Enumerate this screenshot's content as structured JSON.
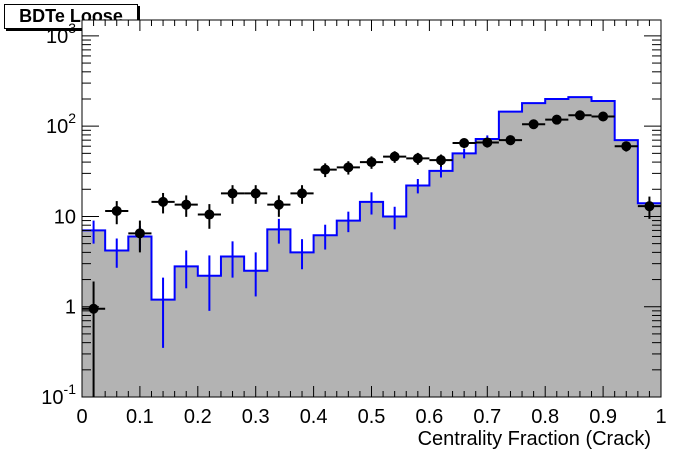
{
  "chart_data": {
    "type": "histogram",
    "title": "BDTe Loose",
    "xlabel": "Centrality Fraction (Crack)",
    "ylabel": "",
    "xlim": [
      0,
      1
    ],
    "ylim": [
      0.1,
      1500
    ],
    "yscale": "log",
    "grid": false,
    "x_ticks": [
      "0",
      "0.1",
      "0.2",
      "0.3",
      "0.4",
      "0.5",
      "0.6",
      "0.7",
      "0.8",
      "0.9",
      "1"
    ],
    "y_ticks": [
      {
        "value": 0.1,
        "label": "10^-1"
      },
      {
        "value": 1,
        "label": "1"
      },
      {
        "value": 10,
        "label": "10"
      },
      {
        "value": 100,
        "label": "10^2"
      },
      {
        "value": 1000,
        "label": "10^3"
      }
    ],
    "bin_edges": [
      0,
      0.04,
      0.08,
      0.12,
      0.16,
      0.2,
      0.24,
      0.28,
      0.32,
      0.36,
      0.4,
      0.44,
      0.48,
      0.52,
      0.56,
      0.6,
      0.64,
      0.68,
      0.72,
      0.76,
      0.8,
      0.84,
      0.88,
      0.92,
      0.96,
      1.0
    ],
    "series": [
      {
        "style": "filled-histogram",
        "color": "#b3b3b3",
        "values": [
          7.0,
          4.2,
          6.0,
          1.2,
          2.8,
          2.2,
          3.6,
          2.5,
          7.2,
          4.0,
          6.2,
          9.0,
          14.5,
          10.0,
          22,
          32,
          50,
          72,
          145,
          180,
          200,
          210,
          190,
          70,
          14
        ]
      },
      {
        "style": "line-histogram",
        "color": "#0000ff",
        "values": [
          7.0,
          4.2,
          6.0,
          1.2,
          2.8,
          2.2,
          3.6,
          2.5,
          7.2,
          4.0,
          6.2,
          9.0,
          14.5,
          10.0,
          22,
          32,
          50,
          72,
          145,
          180,
          200,
          210,
          190,
          70,
          14
        ],
        "errors_low": [
          2.0,
          1.5,
          1.8,
          0.85,
          1.2,
          1.3,
          1.5,
          1.2,
          2.2,
          1.4,
          1.9,
          2.3,
          4.0,
          2.8,
          4.0,
          5.0,
          6.0,
          7.0,
          0,
          0,
          0,
          0,
          0,
          0,
          0
        ],
        "errors_high": [
          2.0,
          1.5,
          1.8,
          0.9,
          1.4,
          1.5,
          1.7,
          1.5,
          2.2,
          1.6,
          1.9,
          2.3,
          4.0,
          2.8,
          4.0,
          5.0,
          6.0,
          7.0,
          0,
          0,
          0,
          0,
          0,
          0,
          0
        ]
      },
      {
        "style": "points",
        "color": "#000000",
        "values": [
          0.95,
          11.5,
          6.5,
          14.5,
          13.5,
          10.5,
          18,
          18,
          13.5,
          18,
          33,
          35,
          40,
          46,
          44,
          42,
          65,
          66,
          70,
          105,
          118,
          132,
          128,
          60,
          13
        ],
        "errors_low": [
          0.94,
          3.3,
          2.5,
          3.7,
          3.6,
          3.2,
          4.2,
          4.2,
          3.6,
          4.2,
          5.7,
          5.9,
          6.3,
          6.8,
          6.6,
          6.5,
          8.1,
          8.1,
          8.4,
          10.2,
          10.9,
          11.5,
          11.3,
          7.7,
          3.6
        ],
        "errors_high": [
          0.95,
          3.3,
          2.5,
          3.7,
          3.6,
          3.2,
          4.2,
          4.2,
          3.6,
          4.2,
          5.7,
          5.9,
          6.3,
          6.8,
          6.6,
          6.5,
          8.1,
          8.1,
          8.4,
          10.2,
          10.9,
          11.5,
          11.3,
          7.7,
          3.6
        ]
      }
    ]
  }
}
